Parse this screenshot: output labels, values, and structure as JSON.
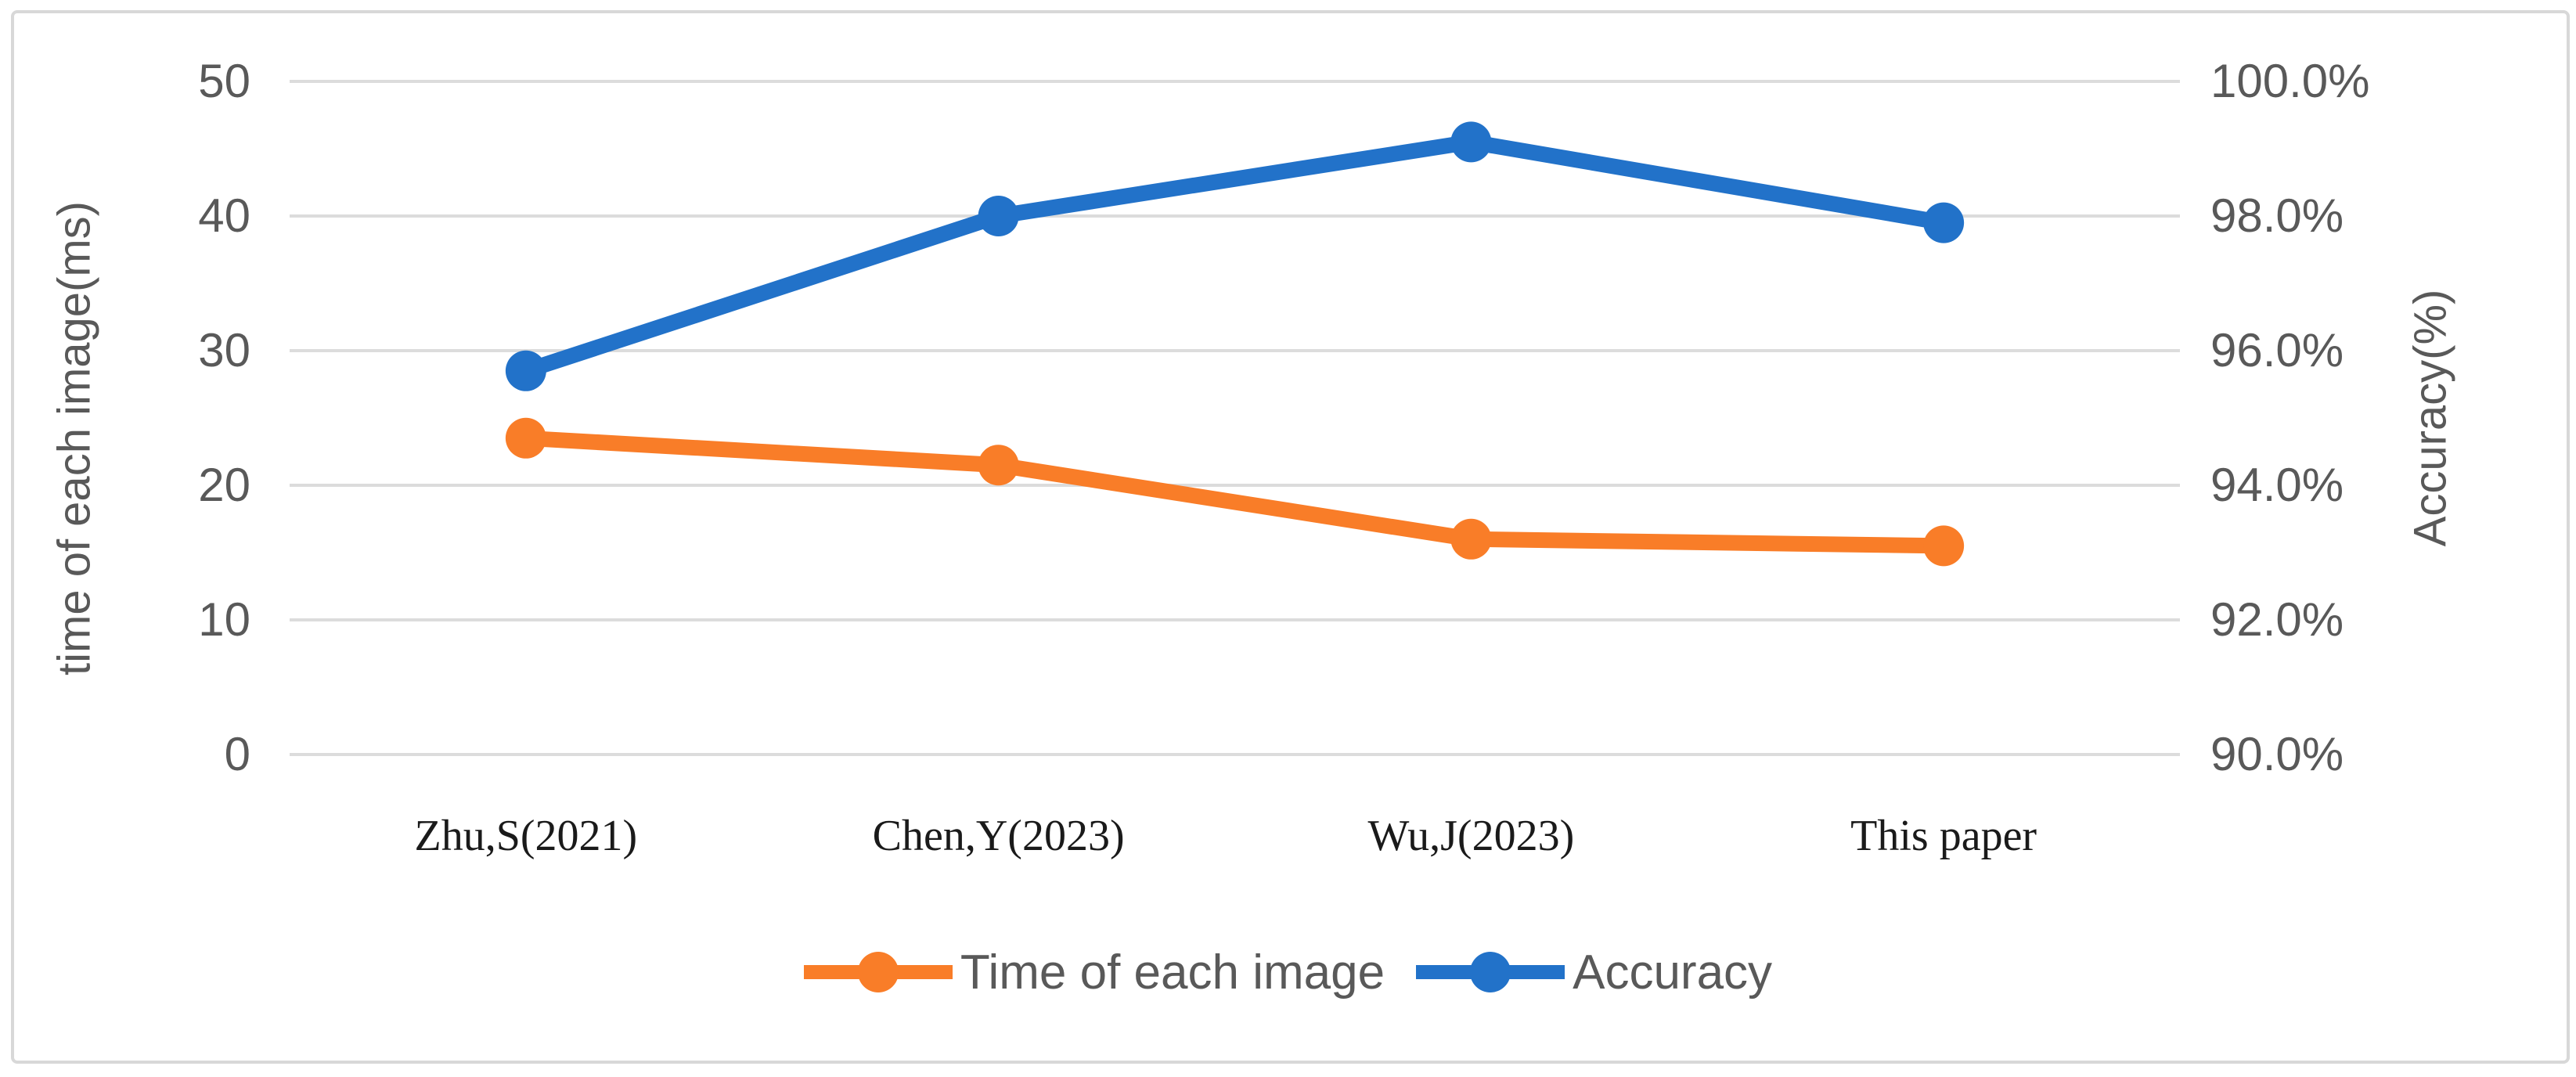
{
  "chart_data": {
    "type": "line",
    "categories": [
      "Zhu,S(2021)",
      "Chen,Y(2023)",
      "Wu,J(2023)",
      "This paper"
    ],
    "series": [
      {
        "name": "Time of each image",
        "axis": "left",
        "color": "#F97D28",
        "values": [
          23.5,
          21.5,
          16,
          15.5
        ]
      },
      {
        "name": "Accuracy",
        "axis": "right",
        "color": "#2272C9",
        "values": [
          95.7,
          98.0,
          99.1,
          97.9
        ]
      }
    ],
    "left_axis": {
      "title": "time of each image(ms)",
      "min": 0,
      "max": 50,
      "tick_labels": [
        "0",
        "10",
        "20",
        "30",
        "40",
        "50"
      ]
    },
    "right_axis": {
      "title": "Accuracy(%)",
      "min": 90,
      "max": 100,
      "tick_labels": [
        "90.0%",
        "92.0%",
        "94.0%",
        "96.0%",
        "98.0%",
        "100.0%"
      ]
    },
    "legend": {
      "position": "bottom",
      "items": [
        {
          "label": "Time of each image",
          "color": "#F97D28"
        },
        {
          "label": "Accuracy",
          "color": "#2272C9"
        }
      ]
    },
    "grid": "horizontal",
    "styles": {
      "gridline_color": "#DCDCDC",
      "axis_text_color": "#595959",
      "category_text_color": "#1A1A1A",
      "frame_border_color": "#D8D8D8",
      "background": "#FFFFFF"
    }
  }
}
